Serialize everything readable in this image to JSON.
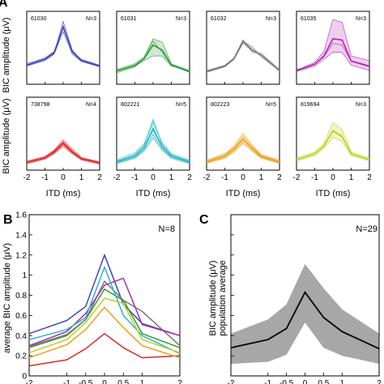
{
  "panel_letters": {
    "a": "A",
    "b": "B",
    "c": "C"
  },
  "panel_a": {
    "ylabel": "BIC amplitude (μV)",
    "xlabel": "ITD (ms)",
    "x_ticks": [
      "-2",
      "-1",
      "0",
      "1",
      "2"
    ]
  },
  "panel_b": {
    "ylabel": "average BIC amplitude (μV)",
    "n_label": "N=8",
    "y_ticks": [
      "0",
      "0.2",
      "0.4",
      "0.6",
      "0.8",
      "1",
      "1.2",
      "1.4",
      "1.6"
    ],
    "x_ticks": [
      "-2",
      "-1",
      "-0.5",
      "0",
      "0.5",
      "1",
      "2"
    ]
  },
  "panel_c": {
    "ylabel_line1": "BIC amplitude (μV)",
    "ylabel_line2": "population average",
    "n_label": "N=29",
    "x_ticks": [
      "-2",
      "-1",
      "-0.5",
      "0",
      "0.5",
      "1",
      "2"
    ]
  },
  "chart_data": [
    {
      "type": "line",
      "panel": "A",
      "ylabel": "BIC amplitude (μV)",
      "xlabel": "ITD (ms)",
      "x": [
        -2,
        -1,
        -0.5,
        0,
        0.5,
        1,
        2
      ],
      "xlim": [
        -2,
        2
      ],
      "ylim": [
        0,
        1.6
      ],
      "subplots": [
        {
          "id": "61030",
          "n": "N=3",
          "color": "#3f47b8",
          "traces": [
            [
              0.45,
              0.58,
              0.72,
              1.25,
              0.72,
              0.55,
              0.42
            ],
            [
              0.42,
              0.55,
              0.68,
              1.38,
              0.75,
              0.52,
              0.4
            ],
            [
              0.4,
              0.52,
              0.66,
              1.15,
              0.66,
              0.5,
              0.38
            ]
          ],
          "mean": [
            0.42,
            0.55,
            0.69,
            1.26,
            0.71,
            0.52,
            0.4
          ]
        },
        {
          "id": "61031",
          "n": "N=3",
          "color": "#2e9a36",
          "traces": [
            [
              0.32,
              0.45,
              0.6,
              1.0,
              0.92,
              0.45,
              0.3
            ],
            [
              0.3,
              0.4,
              0.52,
              0.62,
              0.62,
              0.4,
              0.28
            ],
            [
              0.25,
              0.38,
              0.56,
              0.95,
              0.7,
              0.42,
              0.26
            ]
          ],
          "mean": [
            0.29,
            0.41,
            0.56,
            0.86,
            0.75,
            0.42,
            0.28
          ]
        },
        {
          "id": "61032",
          "n": "N=3",
          "color": "#7a7a7a",
          "traces": [
            [
              0.3,
              0.42,
              0.58,
              0.98,
              0.7,
              0.68,
              0.32
            ],
            [
              0.28,
              0.4,
              0.56,
              0.94,
              0.82,
              0.6,
              0.3
            ],
            [
              0.26,
              0.38,
              0.54,
              0.9,
              0.74,
              0.64,
              0.28
            ]
          ],
          "mean": [
            0.28,
            0.4,
            0.56,
            0.94,
            0.75,
            0.64,
            0.3
          ]
        },
        {
          "id": "61035",
          "n": "N=3",
          "color": "#b228b2",
          "traces": [
            [
              0.3,
              0.48,
              0.72,
              1.42,
              1.36,
              0.62,
              0.52
            ],
            [
              0.32,
              0.44,
              0.6,
              0.9,
              0.86,
              0.5,
              0.38
            ],
            [
              0.28,
              0.4,
              0.55,
              0.7,
              0.7,
              0.42,
              0.3
            ]
          ],
          "mean": [
            0.3,
            0.44,
            0.62,
            1.0,
            0.97,
            0.51,
            0.4
          ]
        },
        {
          "id": "738798",
          "n": "N=4",
          "color": "#e02828",
          "traces": [
            [
              0.18,
              0.28,
              0.42,
              0.62,
              0.42,
              0.26,
              0.16
            ],
            [
              0.16,
              0.26,
              0.38,
              0.56,
              0.38,
              0.24,
              0.15
            ],
            [
              0.14,
              0.24,
              0.36,
              0.52,
              0.36,
              0.22,
              0.13
            ],
            [
              0.2,
              0.3,
              0.44,
              0.66,
              0.46,
              0.28,
              0.18
            ]
          ],
          "mean": [
            0.17,
            0.27,
            0.4,
            0.59,
            0.4,
            0.25,
            0.16
          ]
        },
        {
          "id": "802221",
          "n": "N=5",
          "color": "#29b6c2",
          "traces": [
            [
              0.22,
              0.38,
              0.58,
              1.05,
              0.6,
              0.36,
              0.22
            ],
            [
              0.2,
              0.34,
              0.54,
              1.12,
              0.56,
              0.34,
              0.2
            ],
            [
              0.18,
              0.3,
              0.48,
              0.88,
              0.5,
              0.3,
              0.18
            ],
            [
              0.16,
              0.28,
              0.44,
              0.78,
              0.46,
              0.28,
              0.16
            ],
            [
              0.14,
              0.26,
              0.42,
              0.7,
              0.44,
              0.26,
              0.14
            ]
          ],
          "mean": [
            0.18,
            0.31,
            0.49,
            0.91,
            0.51,
            0.31,
            0.18
          ]
        },
        {
          "id": "802223",
          "n": "N=5",
          "color": "#eba21a",
          "traces": [
            [
              0.2,
              0.34,
              0.5,
              0.74,
              0.52,
              0.32,
              0.2
            ],
            [
              0.18,
              0.3,
              0.46,
              0.68,
              0.48,
              0.3,
              0.18
            ],
            [
              0.16,
              0.28,
              0.42,
              0.62,
              0.44,
              0.28,
              0.16
            ],
            [
              0.22,
              0.36,
              0.52,
              0.8,
              0.55,
              0.34,
              0.22
            ],
            [
              0.15,
              0.26,
              0.4,
              0.58,
              0.42,
              0.26,
              0.15
            ]
          ],
          "mean": [
            0.18,
            0.31,
            0.46,
            0.68,
            0.48,
            0.3,
            0.18
          ]
        },
        {
          "id": "819694",
          "n": "N=3",
          "color": "#b9d11c",
          "traces": [
            [
              0.26,
              0.4,
              0.58,
              1.05,
              0.88,
              0.4,
              0.26
            ],
            [
              0.22,
              0.36,
              0.52,
              0.85,
              0.72,
              0.36,
              0.22
            ],
            [
              0.2,
              0.32,
              0.48,
              0.72,
              0.62,
              0.32,
              0.2
            ]
          ],
          "mean": [
            0.23,
            0.36,
            0.53,
            0.87,
            0.74,
            0.36,
            0.23
          ]
        }
      ]
    },
    {
      "type": "line",
      "panel": "B",
      "ylabel": "average BIC amplitude (μV)",
      "x": [
        -2,
        -1,
        -0.5,
        0,
        0.5,
        1,
        2
      ],
      "xlim": [
        -2,
        2
      ],
      "ylim": [
        0,
        1.6
      ],
      "series": [
        {
          "color": "#3f47b8",
          "values": [
            0.42,
            0.55,
            0.69,
            1.2,
            0.71,
            0.52,
            0.4
          ]
        },
        {
          "color": "#2e9a36",
          "values": [
            0.29,
            0.41,
            0.56,
            0.86,
            0.75,
            0.42,
            0.28
          ]
        },
        {
          "color": "#7a7a7a",
          "values": [
            0.28,
            0.4,
            0.56,
            0.94,
            0.75,
            0.64,
            0.3
          ]
        },
        {
          "color": "#b228b2",
          "values": [
            0.3,
            0.44,
            0.62,
            0.9,
            0.97,
            0.51,
            0.4
          ]
        },
        {
          "color": "#e02828",
          "values": [
            0.1,
            0.16,
            0.27,
            0.42,
            0.28,
            0.18,
            0.2
          ]
        },
        {
          "color": "#29b6c2",
          "values": [
            0.36,
            0.46,
            0.58,
            1.08,
            0.6,
            0.4,
            0.22
          ]
        },
        {
          "color": "#eba21a",
          "values": [
            0.18,
            0.31,
            0.46,
            0.68,
            0.48,
            0.3,
            0.18
          ]
        },
        {
          "color": "#b9d11c",
          "values": [
            0.23,
            0.36,
            0.53,
            0.77,
            0.72,
            0.36,
            0.23
          ]
        }
      ]
    },
    {
      "type": "area",
      "panel": "C",
      "ylabel": "BIC amplitude (μV) population average",
      "x": [
        -2,
        -1,
        -0.5,
        0,
        0.5,
        1,
        2
      ],
      "xlim": [
        -2,
        2
      ],
      "ylim": [
        0,
        1.6
      ],
      "mean": [
        0.28,
        0.36,
        0.47,
        0.83,
        0.58,
        0.44,
        0.27
      ],
      "upper": [
        0.42,
        0.56,
        0.71,
        1.11,
        0.87,
        0.66,
        0.42
      ],
      "lower": [
        0.12,
        0.14,
        0.21,
        0.53,
        0.28,
        0.2,
        0.12
      ],
      "band_color": "#8a8a8a",
      "line_color": "#000000"
    }
  ]
}
